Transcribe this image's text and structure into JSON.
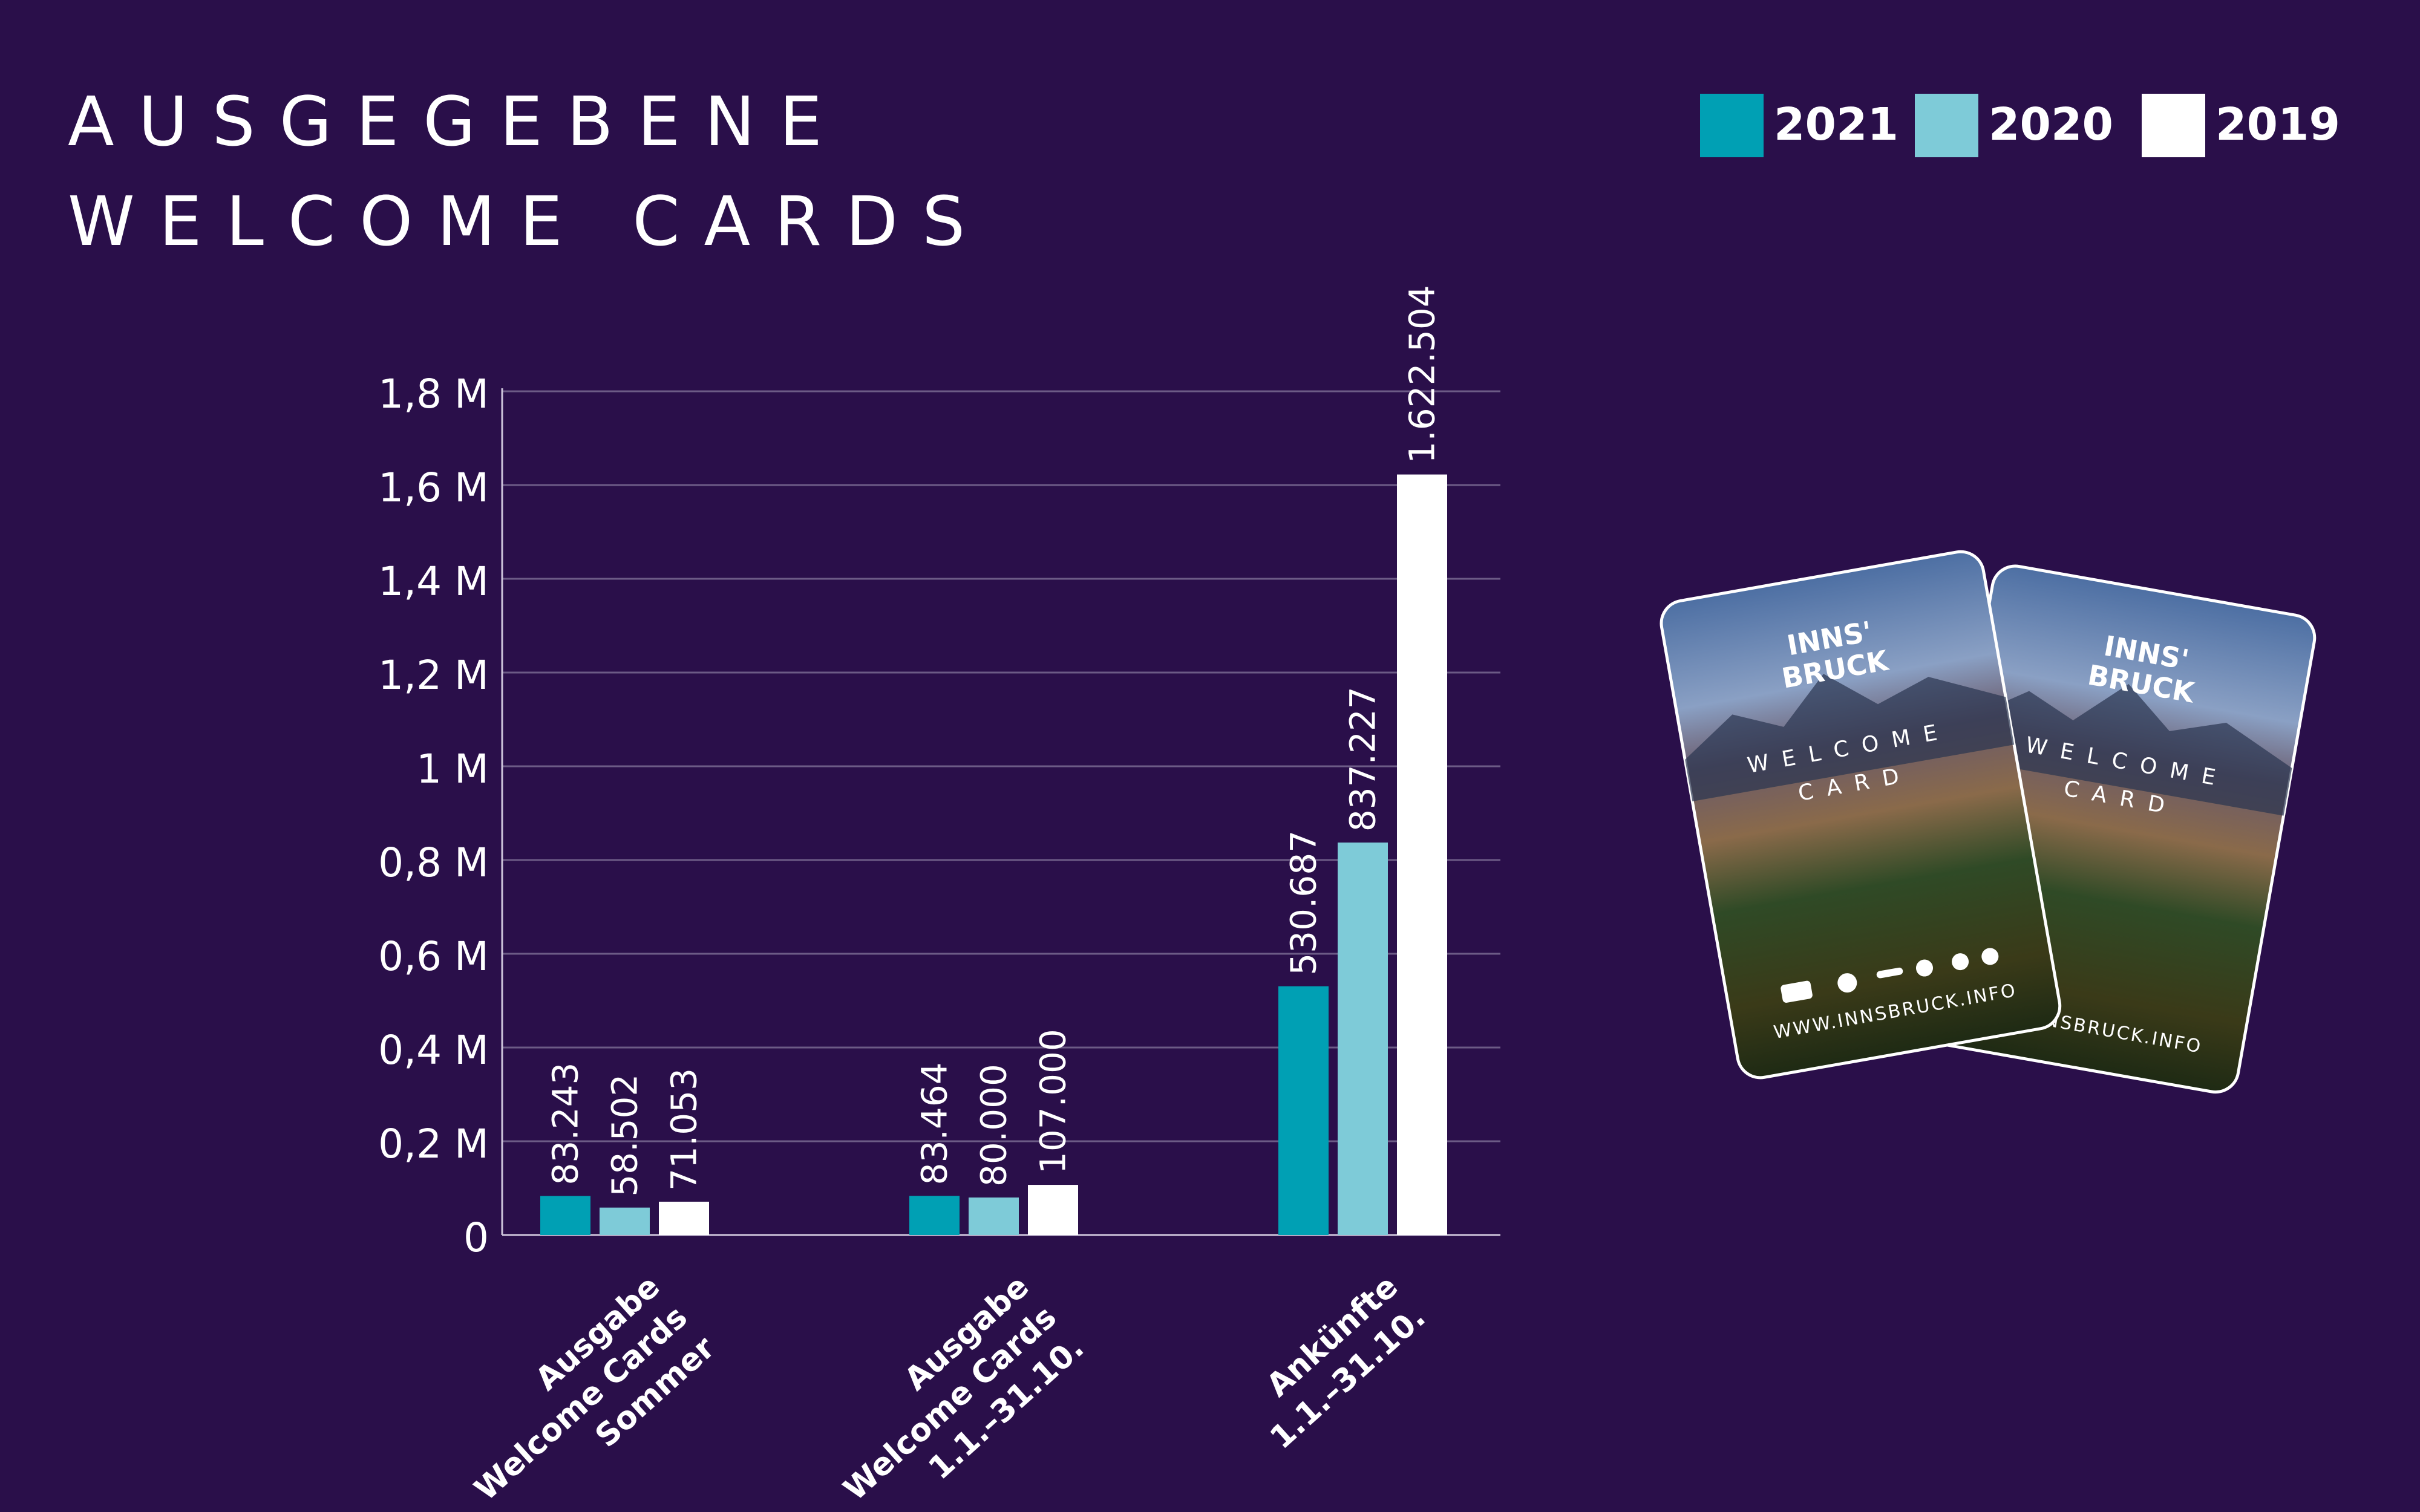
{
  "title": {
    "line1": "AUSGEGEBENE",
    "line2": "WELCOME CARDS"
  },
  "colors": {
    "background": "#2a0f4a",
    "c2021": "#00a0b4",
    "c2020": "#7ecbd8",
    "c2019": "#ffffff",
    "grid": "#6c5b86"
  },
  "legend": [
    {
      "label": "2021",
      "color": "#00a0b4"
    },
    {
      "label": "2020",
      "color": "#7ecbd8"
    },
    {
      "label": "2019",
      "color": "#ffffff"
    }
  ],
  "chart_data": {
    "type": "bar",
    "categories": [
      [
        "Ausgabe",
        "Welcome Cards",
        "Sommer"
      ],
      [
        "Ausgabe",
        "Welcome Cards",
        "1.1.–31.10."
      ],
      [
        "Ankünfte",
        "1.1.–31.10."
      ]
    ],
    "series": [
      {
        "name": "2021",
        "values": [
          83243,
          83464,
          530687
        ],
        "labels": [
          "83.243",
          "83.464",
          "530.687"
        ],
        "color": "#00a0b4"
      },
      {
        "name": "2020",
        "values": [
          58502,
          80000,
          837227
        ],
        "labels": [
          "58.502",
          "80.000",
          "837.227"
        ],
        "color": "#7ecbd8"
      },
      {
        "name": "2019",
        "values": [
          71053,
          107000,
          1622504
        ],
        "labels": [
          "71.053",
          "107.000",
          "1.622.504"
        ],
        "color": "#ffffff"
      }
    ],
    "y_ticks": [
      {
        "value": 0,
        "label": "0"
      },
      {
        "value": 200000,
        "label": "0,2 M"
      },
      {
        "value": 400000,
        "label": "0,4 M"
      },
      {
        "value": 600000,
        "label": "0,6 M"
      },
      {
        "value": 800000,
        "label": "0,8 M"
      },
      {
        "value": 1000000,
        "label": "1 M"
      },
      {
        "value": 1200000,
        "label": "1,2 M"
      },
      {
        "value": 1400000,
        "label": "1,4 M"
      },
      {
        "value": 1600000,
        "label": "1,6 M"
      },
      {
        "value": 1800000,
        "label": "1,8 M"
      }
    ],
    "ylim": [
      0,
      1800000
    ],
    "grid": true,
    "legend_position": "top-right"
  },
  "card_image": {
    "logo_line1": "INNS'",
    "logo_line2": "BRUCK",
    "welcome": "WELCOME",
    "card": "CARD",
    "url": "WWW.INNSBRUCK.INFO"
  }
}
